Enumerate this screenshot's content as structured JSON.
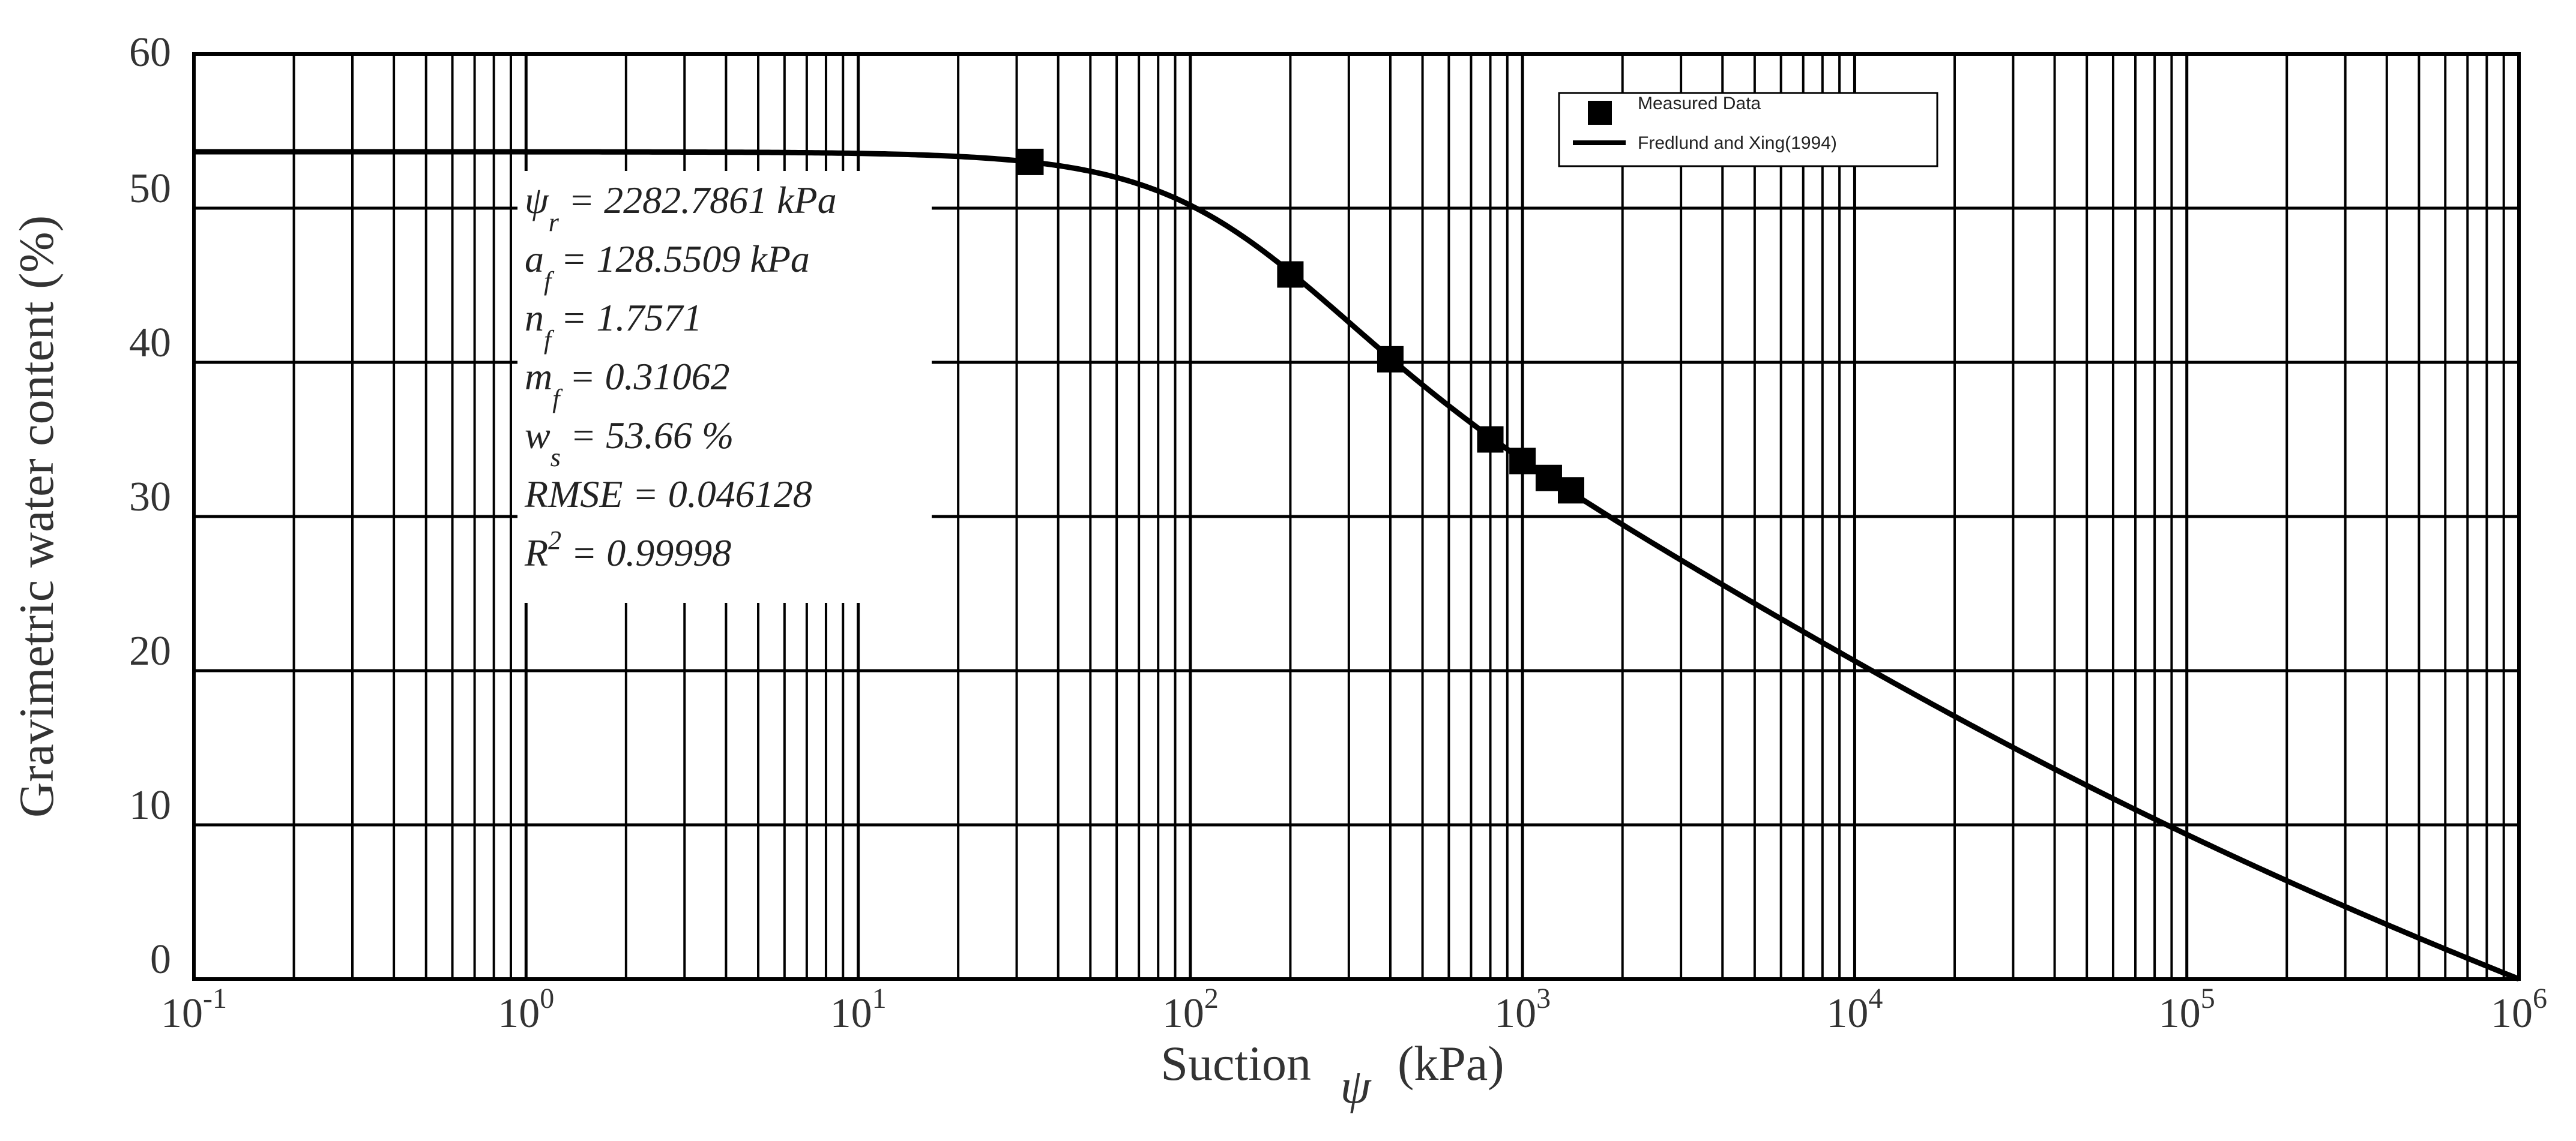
{
  "chart_data": {
    "type": "scatter",
    "xscale": "log",
    "xlim": [
      0.1,
      1000000
    ],
    "ylim": [
      0,
      60
    ],
    "grid": true,
    "xlabel_text": "Suction",
    "xlabel_symbol": "ψ",
    "xlabel_unit": "(kPa)",
    "ylabel": "Gravimetric water content (%)",
    "x_ticks": [
      {
        "base": "10",
        "exp": "-1",
        "value": 0.1
      },
      {
        "base": "10",
        "exp": "0",
        "value": 1
      },
      {
        "base": "10",
        "exp": "1",
        "value": 10
      },
      {
        "base": "10",
        "exp": "2",
        "value": 100
      },
      {
        "base": "10",
        "exp": "3",
        "value": 1000
      },
      {
        "base": "10",
        "exp": "4",
        "value": 10000
      },
      {
        "base": "10",
        "exp": "5",
        "value": 100000
      },
      {
        "base": "10",
        "exp": "6",
        "value": 1000000
      }
    ],
    "y_ticks": [
      0,
      10,
      20,
      30,
      40,
      50,
      60
    ],
    "legend": {
      "position": "top-right",
      "entries": [
        {
          "label": "Measured Data",
          "marker": "square"
        },
        {
          "label": "Fredlund and Xing(1994)",
          "marker": "line"
        }
      ]
    },
    "series": [
      {
        "name": "Measured Data",
        "kind": "points",
        "marker": "square",
        "color": "#000000",
        "x": [
          33,
          200,
          400,
          800,
          1000,
          1200,
          1400
        ],
        "y": [
          53.0,
          45.7,
          40.2,
          35.0,
          33.6,
          32.5,
          31.7
        ]
      },
      {
        "name": "Fredlund and Xing(1994)",
        "kind": "line",
        "color": "#000000"
      }
    ],
    "model_params": {
      "psi_r": 2282.7861,
      "a_f": 128.5509,
      "n_f": 1.7571,
      "m_f": 0.31062,
      "w_s": 53.66
    },
    "annotations": [
      {
        "sym": "ψ",
        "sub": "r",
        "sup": "",
        "rest": " = 2282.7861 kPa"
      },
      {
        "sym": "a",
        "sub": "f",
        "sup": "",
        "rest": " = 128.5509 kPa"
      },
      {
        "sym": "n",
        "sub": "f",
        "sup": "",
        "rest": " = 1.7571"
      },
      {
        "sym": "m",
        "sub": "f",
        "sup": "",
        "rest": " = 0.31062"
      },
      {
        "sym": "w",
        "sub": "s",
        "sup": "",
        "rest": " = 53.66 %"
      },
      {
        "sym": "RMSE",
        "sub": "",
        "sup": "",
        "rest": " = 0.046128"
      },
      {
        "sym": "R",
        "sub": "",
        "sup": "2",
        "rest": " = 0.99998"
      }
    ]
  },
  "colors": {
    "axes": "#000000",
    "grid": "#000000",
    "text": "#333333"
  }
}
